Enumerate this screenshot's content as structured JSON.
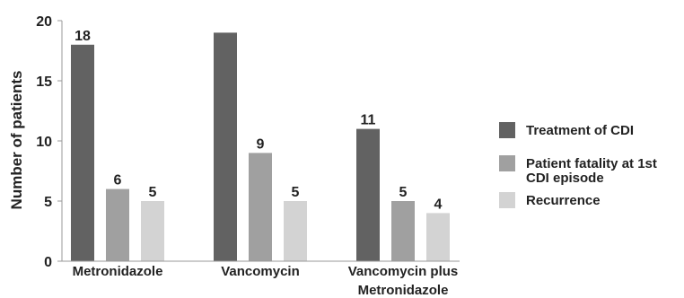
{
  "chart_data": {
    "type": "bar",
    "title": "",
    "xlabel": "",
    "ylabel": "Number of patients",
    "ylim": [
      0,
      20
    ],
    "yticks": [
      0,
      5,
      10,
      15,
      20
    ],
    "categories": [
      [
        "Metronidazole"
      ],
      [
        "Vancomycin"
      ],
      [
        "Vancomycin plus",
        "Metronidazole"
      ]
    ],
    "series": [
      {
        "name": [
          "Treatment of CDI"
        ],
        "color": "#626262",
        "values": [
          18,
          19,
          11
        ],
        "labels": [
          "18",
          "",
          "11"
        ]
      },
      {
        "name": [
          "Patient fatality at 1st",
          "CDI episode"
        ],
        "color": "#a0a0a0",
        "values": [
          6,
          9,
          5
        ],
        "labels": [
          "6",
          "9",
          "5"
        ]
      },
      {
        "name": [
          "Recurrence"
        ],
        "color": "#d3d3d3",
        "values": [
          5,
          5,
          4
        ],
        "labels": [
          "5",
          "5",
          "4"
        ]
      }
    ],
    "grid": false,
    "legend_position": "right"
  }
}
